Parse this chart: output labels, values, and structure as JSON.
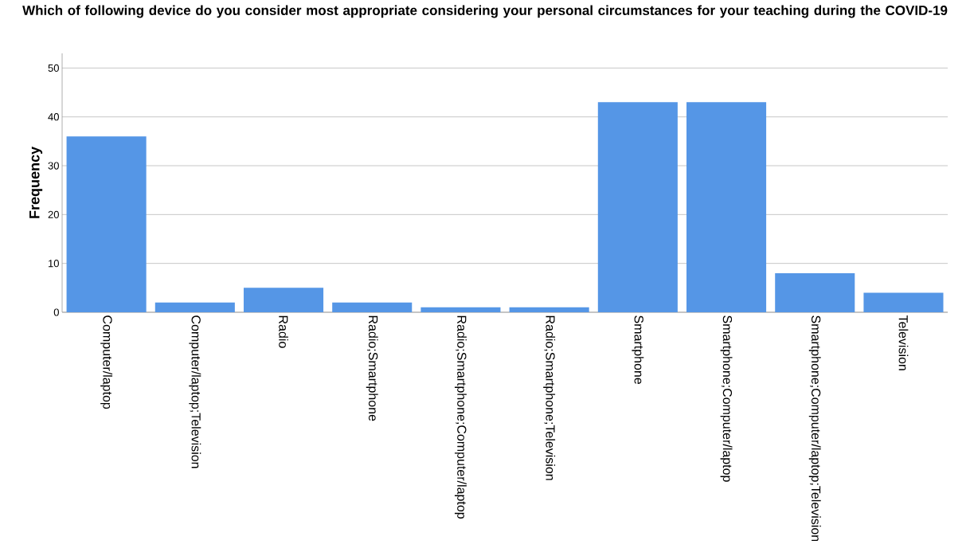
{
  "chart_data": {
    "type": "bar",
    "title": "Which of following device do you consider most appropriate considering your personal circumstances for your teaching during the COVID-19",
    "ylabel": "Frequency",
    "categories": [
      "Computer/laptop",
      "Computer/laptop;Television",
      "Radio",
      "Radio;Smartphone",
      "Radio;Smartphone;Computer/laptop",
      "Radio;Smartphone;Television",
      "Smartphone",
      "Smartphone;Computer/laptop",
      "Smartphone;Computer/laptop;Television",
      "Television"
    ],
    "values": [
      36,
      2,
      5,
      2,
      1,
      1,
      43,
      43,
      8,
      4
    ],
    "color": "#5596e6",
    "ylim": [
      0,
      53
    ],
    "yticks": [
      0,
      10,
      20,
      30,
      40,
      50
    ],
    "grid": "y"
  }
}
